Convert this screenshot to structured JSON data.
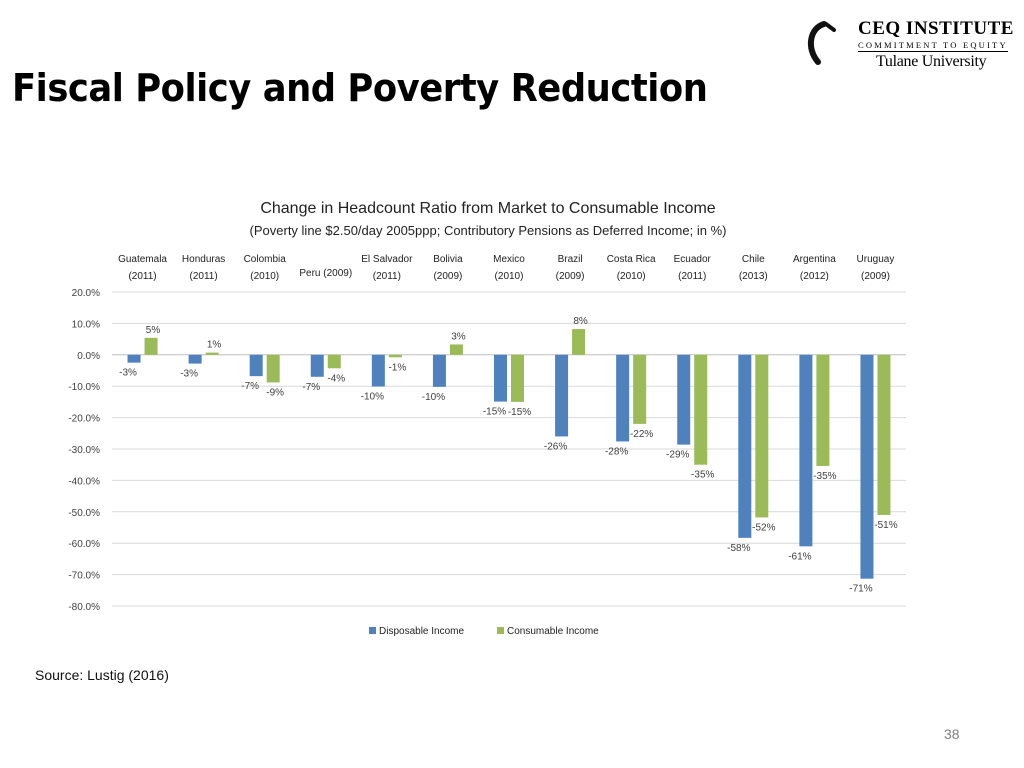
{
  "slide": {
    "title": "Fiscal Policy and Poverty Reduction",
    "source": "Source: Lustig (2016)",
    "page_number": "38"
  },
  "logo": {
    "name": "CEQ INSTITUTE",
    "tagline": "COMMITMENT TO EQUITY",
    "university": "Tulane University"
  },
  "colors": {
    "disposable": "#4f81bd",
    "consumable": "#9bbb59",
    "grid": "#d9d9d9",
    "axis_text": "#404040"
  },
  "chart_data": {
    "type": "bar",
    "title": "Change in Headcount Ratio from Market to Consumable Income",
    "subtitle": "(Poverty line $2.50/day 2005ppp; Contributory Pensions as Deferred Income; in %)",
    "categories": [
      [
        "Guatemala",
        "(2011)"
      ],
      [
        "Honduras",
        "(2011)"
      ],
      [
        "Colombia",
        "(2010)"
      ],
      [
        "Peru (2009)"
      ],
      [
        "El Salvador",
        "(2011)"
      ],
      [
        "Bolivia",
        "(2009)"
      ],
      [
        "Mexico",
        "(2010)"
      ],
      [
        "Brazil",
        "(2009)"
      ],
      [
        "Costa Rica",
        "(2010)"
      ],
      [
        "Ecuador",
        "(2011)"
      ],
      [
        "Chile",
        "(2013)"
      ],
      [
        "Argentina",
        "(2012)"
      ],
      [
        "Uruguay",
        "(2009)"
      ]
    ],
    "series": [
      {
        "name": "Disposable Income",
        "values": [
          -2.5,
          -2.8,
          -6.8,
          -7.0,
          -10.1,
          -10.2,
          -14.9,
          -26.0,
          -27.6,
          -28.6,
          -58.3,
          -61.0,
          -71.3
        ],
        "labels": [
          "-3%",
          "-3%",
          "-7%",
          "-7%",
          "-10%",
          "-10%",
          "-15%",
          "-26%",
          "-28%",
          "-29%",
          "-58%",
          "-61%",
          "-71%"
        ]
      },
      {
        "name": "Consumable Income",
        "values": [
          5.4,
          0.7,
          -8.8,
          -4.3,
          -0.8,
          3.3,
          -15.0,
          8.2,
          -22.0,
          -35.0,
          -51.8,
          -35.4,
          -51.0
        ],
        "labels": [
          "5%",
          "1%",
          "-9%",
          "-4%",
          "-1%",
          "3%",
          "-15%",
          "8%",
          "-22%",
          "-35%",
          "-52%",
          "-35%",
          "-51%"
        ]
      }
    ],
    "y_ticks": [
      "20.0%",
      "10.0%",
      "0.0%",
      "-10.0%",
      "-20.0%",
      "-30.0%",
      "-40.0%",
      "-50.0%",
      "-60.0%",
      "-70.0%",
      "-80.0%"
    ],
    "ylim": [
      -80,
      20
    ],
    "grid": true,
    "legend": "bottom"
  }
}
